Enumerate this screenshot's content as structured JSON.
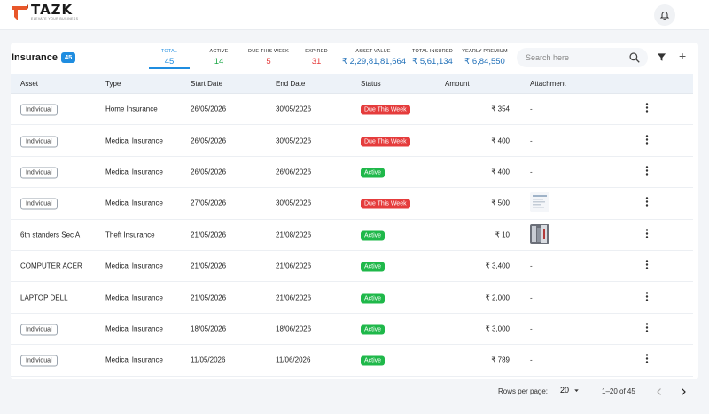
{
  "app": {
    "brand": "TAZK",
    "tagline": "Elevate your business"
  },
  "page": {
    "title": "Insurance",
    "count": "45"
  },
  "stats": [
    {
      "label": "Total",
      "value": "45",
      "color": "#1f8de0"
    },
    {
      "label": "Active",
      "value": "14",
      "color": "#1fa84a"
    },
    {
      "label": "Due this week",
      "value": "5",
      "color": "#e53c3c"
    },
    {
      "label": "Expired",
      "value": "31",
      "color": "#e53c3c"
    },
    {
      "label": "Asset value",
      "value": "₹ 2,29,81,81,664",
      "color": "#1f6fb8"
    },
    {
      "label": "Total insured",
      "value": "₹ 5,61,134",
      "color": "#1f6fb8"
    },
    {
      "label": "Yearly premium",
      "value": "₹ 6,84,550",
      "color": "#1f6fb8"
    }
  ],
  "search": {
    "placeholder": "Search here"
  },
  "columns": [
    "Asset",
    "Type",
    "Start Date",
    "End Date",
    "Status",
    "Amount",
    "Attachment"
  ],
  "rows": [
    {
      "asset": "Individual",
      "asset_tag": true,
      "type": "Home Insurance",
      "start": "26/05/2026",
      "end": "30/05/2026",
      "status": "Due This Week",
      "status_kind": "due",
      "amount": "₹ 354",
      "attachment": "-",
      "thumb": ""
    },
    {
      "asset": "Individual",
      "asset_tag": true,
      "type": "Medical Insurance",
      "start": "26/05/2026",
      "end": "30/05/2026",
      "status": "Due This Week",
      "status_kind": "due",
      "amount": "₹ 400",
      "attachment": "-",
      "thumb": ""
    },
    {
      "asset": "Individual",
      "asset_tag": true,
      "type": "Medical Insurance",
      "start": "26/05/2026",
      "end": "26/06/2026",
      "status": "Active",
      "status_kind": "active",
      "amount": "₹ 400",
      "attachment": "-",
      "thumb": ""
    },
    {
      "asset": "Individual",
      "asset_tag": true,
      "type": "Medical Insurance",
      "start": "27/05/2026",
      "end": "30/05/2026",
      "status": "Due This Week",
      "status_kind": "due",
      "amount": "₹ 500",
      "attachment": "",
      "thumb": "doc"
    },
    {
      "asset": "6th standers Sec A",
      "asset_tag": false,
      "type": "Theft Insurance",
      "start": "21/05/2026",
      "end": "21/08/2026",
      "status": "Active",
      "status_kind": "active",
      "amount": "₹ 10",
      "attachment": "",
      "thumb": "photo"
    },
    {
      "asset": "COMPUTER ACER",
      "asset_tag": false,
      "type": "Medical Insurance",
      "start": "21/05/2026",
      "end": "21/06/2026",
      "status": "Active",
      "status_kind": "active",
      "amount": "₹ 3,400",
      "attachment": "-",
      "thumb": ""
    },
    {
      "asset": "LAPTOP DELL",
      "asset_tag": false,
      "type": "Medical Insurance",
      "start": "21/05/2026",
      "end": "21/06/2026",
      "status": "Active",
      "status_kind": "active",
      "amount": "₹ 2,000",
      "attachment": "-",
      "thumb": ""
    },
    {
      "asset": "Individual",
      "asset_tag": true,
      "type": "Medical Insurance",
      "start": "18/05/2026",
      "end": "18/06/2026",
      "status": "Active",
      "status_kind": "active",
      "amount": "₹ 3,000",
      "attachment": "-",
      "thumb": ""
    },
    {
      "asset": "Individual",
      "asset_tag": true,
      "type": "Medical Insurance",
      "start": "11/05/2026",
      "end": "11/06/2026",
      "status": "Active",
      "status_kind": "active",
      "amount": "₹ 789",
      "attachment": "-",
      "thumb": ""
    }
  ],
  "pagination": {
    "rows_per_page_label": "Rows per page:",
    "rows_per_page": "20",
    "range": "1–20 of 45"
  },
  "icons": {
    "bell": "bell-icon",
    "search": "search-icon",
    "filter": "filter-icon",
    "add": "plus-icon",
    "row_menu": "kebab-menu-icon",
    "prev": "chevron-left-icon",
    "next": "chevron-right-icon"
  },
  "colors": {
    "accent": "#1f8de0",
    "due": "#e53c3c",
    "active": "#1fb84a"
  }
}
